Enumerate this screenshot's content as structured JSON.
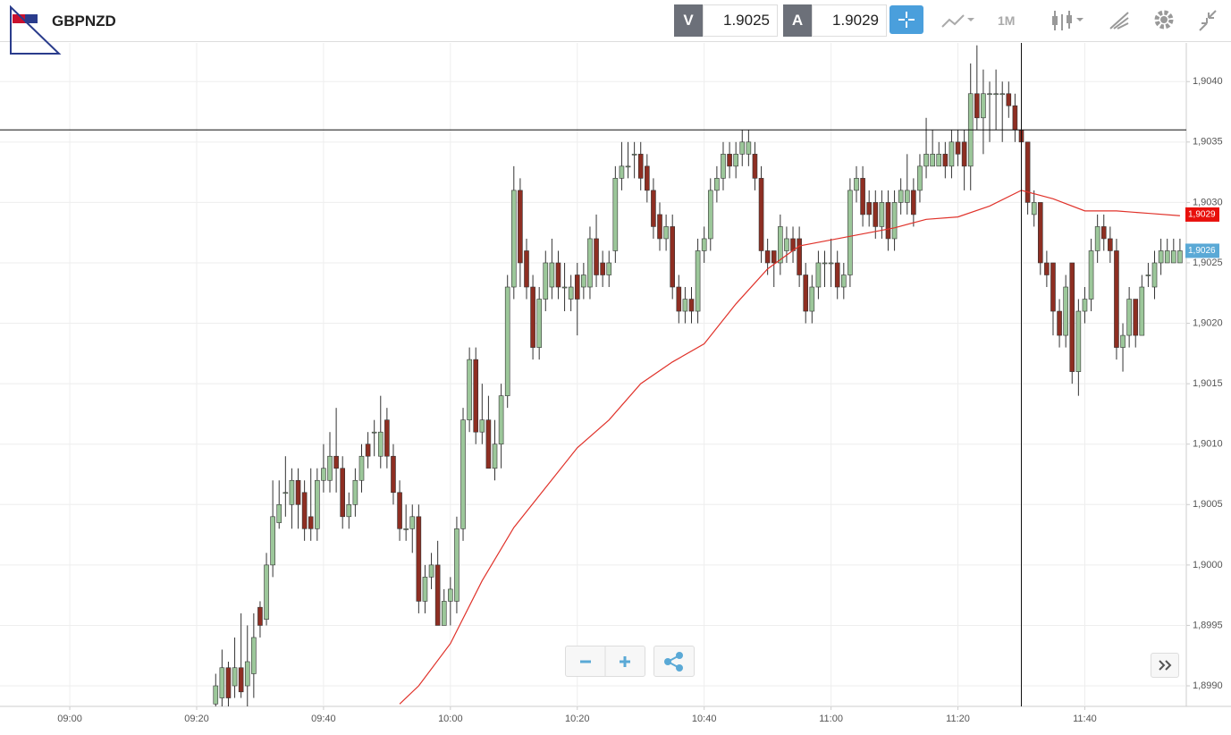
{
  "toolbar": {
    "symbol": "GBPNZD",
    "sell_label": "V",
    "sell": 1.9025,
    "buy_label": "A",
    "buy": 1.9029,
    "timeframe": "1M"
  },
  "chart_data": {
    "type": "candlestick",
    "up_color": "#9cc79a",
    "down_color": "#8e2e22",
    "grid": true,
    "xlim": [
      "08:49",
      "11:56"
    ],
    "xticks": [
      "09:00",
      "09:20",
      "09:40",
      "10:00",
      "10:20",
      "10:40",
      "11:00",
      "11:20",
      "11:40"
    ],
    "ylim": [
      1.89883,
      1.90432
    ],
    "yticks": [
      {
        "value": 1.899,
        "label": "1,8990"
      },
      {
        "value": 1.8995,
        "label": "1,8995"
      },
      {
        "value": 1.9,
        "label": "1,9000"
      },
      {
        "value": 1.9005,
        "label": "1,9005"
      },
      {
        "value": 1.901,
        "label": "1,9010"
      },
      {
        "value": 1.9015,
        "label": "1,9015"
      },
      {
        "value": 1.902,
        "label": "1,9020"
      },
      {
        "value": 1.9025,
        "label": "1,9025"
      },
      {
        "value": 1.903,
        "label": "1,9030"
      },
      {
        "value": 1.9035,
        "label": "1,9035"
      },
      {
        "value": 1.904,
        "label": "1,9040"
      }
    ],
    "x": [
      "09:23",
      "09:24",
      "09:25",
      "09:26",
      "09:27",
      "09:28",
      "09:29",
      "09:30",
      "09:31",
      "09:32",
      "09:33",
      "09:34",
      "09:35",
      "09:36",
      "09:37",
      "09:38",
      "09:39",
      "09:40",
      "09:41",
      "09:42",
      "09:43",
      "09:44",
      "09:45",
      "09:46",
      "09:47",
      "09:48",
      "09:49",
      "09:50",
      "09:51",
      "09:52",
      "09:53",
      "09:54",
      "09:55",
      "09:56",
      "09:57",
      "09:58",
      "09:59",
      "10:00",
      "10:01",
      "10:02",
      "10:03",
      "10:04",
      "10:05",
      "10:06",
      "10:07",
      "10:08",
      "10:09",
      "10:10",
      "10:11",
      "10:12",
      "10:13",
      "10:14",
      "10:15",
      "10:16",
      "10:17",
      "10:18",
      "10:19",
      "10:20",
      "10:21",
      "10:22",
      "10:23",
      "10:24",
      "10:25",
      "10:26",
      "10:27",
      "10:28",
      "10:29",
      "10:30",
      "10:31",
      "10:32",
      "10:33",
      "10:34",
      "10:35",
      "10:36",
      "10:37",
      "10:38",
      "10:39",
      "10:40",
      "10:41",
      "10:42",
      "10:43",
      "10:44",
      "10:45",
      "10:46",
      "10:47",
      "10:48",
      "10:49",
      "10:50",
      "10:51",
      "10:52",
      "10:53",
      "10:54",
      "10:55",
      "10:56",
      "10:57",
      "10:58",
      "10:59",
      "11:00",
      "11:01",
      "11:02",
      "11:03",
      "11:04",
      "11:05",
      "11:06",
      "11:07",
      "11:08",
      "11:09",
      "11:10",
      "11:11",
      "11:12",
      "11:13",
      "11:14",
      "11:15",
      "11:16",
      "11:17",
      "11:18",
      "11:19",
      "11:20",
      "11:21",
      "11:22",
      "11:23",
      "11:24",
      "11:25",
      "11:26",
      "11:27",
      "11:28",
      "11:29",
      "11:30",
      "11:31",
      "11:32",
      "11:33",
      "11:34",
      "11:35",
      "11:36",
      "11:37",
      "11:38",
      "11:39",
      "11:40",
      "11:41",
      "11:42",
      "11:43",
      "11:44",
      "11:45",
      "11:46",
      "11:47",
      "11:48",
      "11:49",
      "11:50",
      "11:51",
      "11:52",
      "11:53",
      "11:54",
      "11:55"
    ],
    "ohlc": [
      [
        1.89885,
        1.8991,
        1.8988,
        1.899
      ],
      [
        1.8989,
        1.8993,
        1.8988,
        1.89915
      ],
      [
        1.89915,
        1.8992,
        1.8988,
        1.8989
      ],
      [
        1.899,
        1.8994,
        1.8989,
        1.89915
      ],
      [
        1.89915,
        1.8996,
        1.8989,
        1.89895
      ],
      [
        1.899,
        1.8995,
        1.8988,
        1.8992
      ],
      [
        1.8991,
        1.8996,
        1.8989,
        1.8994
      ],
      [
        1.89965,
        1.8997,
        1.8994,
        1.8995
      ],
      [
        1.89955,
        1.9001,
        1.8995,
        1.9
      ],
      [
        1.9,
        1.9007,
        1.8999,
        1.9004
      ],
      [
        1.90035,
        1.9007,
        1.9003,
        1.9005
      ],
      [
        1.9006,
        1.9009,
        1.9004,
        1.9006
      ],
      [
        1.9005,
        1.9008,
        1.9003,
        1.9007
      ],
      [
        1.9007,
        1.9008,
        1.9003,
        1.9005
      ],
      [
        1.9006,
        1.9007,
        1.9002,
        1.9003
      ],
      [
        1.9004,
        1.9008,
        1.9002,
        1.9003
      ],
      [
        1.9003,
        1.9008,
        1.9002,
        1.9007
      ],
      [
        1.9007,
        1.901,
        1.9006,
        1.9008
      ],
      [
        1.9007,
        1.9011,
        1.9006,
        1.9009
      ],
      [
        1.9009,
        1.9013,
        1.9006,
        1.9008
      ],
      [
        1.9008,
        1.9009,
        1.9003,
        1.9004
      ],
      [
        1.9004,
        1.9006,
        1.9003,
        1.9005
      ],
      [
        1.9005,
        1.9008,
        1.9004,
        1.9007
      ],
      [
        1.9007,
        1.901,
        1.9006,
        1.9009
      ],
      [
        1.901,
        1.9011,
        1.9008,
        1.9009
      ],
      [
        1.9011,
        1.9012,
        1.9009,
        1.9011
      ],
      [
        1.9009,
        1.9014,
        1.9008,
        1.9011
      ],
      [
        1.9012,
        1.9013,
        1.9008,
        1.9009
      ],
      [
        1.9009,
        1.901,
        1.9005,
        1.9006
      ],
      [
        1.9006,
        1.9007,
        1.9002,
        1.9003
      ],
      [
        1.9003,
        1.9005,
        1.9002,
        1.9003
      ],
      [
        1.9003,
        1.9005,
        1.9001,
        1.9004
      ],
      [
        1.9004,
        1.9005,
        1.8996,
        1.8997
      ],
      [
        1.8997,
        1.9,
        1.8996,
        1.8999
      ],
      [
        1.8999,
        1.9001,
        1.8998,
        1.9
      ],
      [
        1.9,
        1.9002,
        1.8995,
        1.8995
      ],
      [
        1.8995,
        1.8998,
        1.8995,
        1.8997
      ],
      [
        1.8997,
        1.8999,
        1.8995,
        1.8998
      ],
      [
        1.8997,
        1.9004,
        1.8996,
        1.9003
      ],
      [
        1.9003,
        1.9013,
        1.9002,
        1.9012
      ],
      [
        1.9012,
        1.9018,
        1.9011,
        1.9017
      ],
      [
        1.9017,
        1.9018,
        1.901,
        1.9011
      ],
      [
        1.9011,
        1.9015,
        1.901,
        1.9012
      ],
      [
        1.9012,
        1.9014,
        1.9008,
        1.9008
      ],
      [
        1.9008,
        1.9012,
        1.9007,
        1.901
      ],
      [
        1.901,
        1.9015,
        1.9008,
        1.9014
      ],
      [
        1.9014,
        1.9024,
        1.9013,
        1.9023
      ],
      [
        1.9023,
        1.9033,
        1.9022,
        1.9031
      ],
      [
        1.9031,
        1.9032,
        1.9023,
        1.9025
      ],
      [
        1.9026,
        1.9027,
        1.9022,
        1.9023
      ],
      [
        1.9023,
        1.9024,
        1.9017,
        1.9018
      ],
      [
        1.9018,
        1.9023,
        1.9017,
        1.9022
      ],
      [
        1.9022,
        1.9026,
        1.9021,
        1.9025
      ],
      [
        1.9023,
        1.9027,
        1.9022,
        1.9025
      ],
      [
        1.9025,
        1.9026,
        1.9022,
        1.9023
      ],
      [
        1.9023,
        1.9025,
        1.9021,
        1.9023
      ],
      [
        1.9022,
        1.9024,
        1.9021,
        1.9023
      ],
      [
        1.9024,
        1.9025,
        1.9019,
        1.9022
      ],
      [
        1.9023,
        1.9025,
        1.9022,
        1.9024
      ],
      [
        1.9023,
        1.9028,
        1.9022,
        1.9027
      ],
      [
        1.9027,
        1.9029,
        1.9023,
        1.9024
      ],
      [
        1.9025,
        1.9026,
        1.9023,
        1.9024
      ],
      [
        1.9024,
        1.9026,
        1.9023,
        1.9025
      ],
      [
        1.9026,
        1.9033,
        1.9025,
        1.9032
      ],
      [
        1.9032,
        1.9035,
        1.9031,
        1.9033
      ],
      [
        1.9033,
        1.9035,
        1.9032,
        1.9033
      ],
      [
        1.9034,
        1.9035,
        1.9032,
        1.9034
      ],
      [
        1.9034,
        1.9035,
        1.9031,
        1.9032
      ],
      [
        1.9033,
        1.9034,
        1.903,
        1.9031
      ],
      [
        1.9031,
        1.9032,
        1.9027,
        1.9028
      ],
      [
        1.9029,
        1.903,
        1.9026,
        1.9027
      ],
      [
        1.9027,
        1.9029,
        1.9026,
        1.9028
      ],
      [
        1.9028,
        1.9029,
        1.9022,
        1.9023
      ],
      [
        1.9023,
        1.9024,
        1.902,
        1.9021
      ],
      [
        1.9021,
        1.9023,
        1.902,
        1.9022
      ],
      [
        1.9022,
        1.9023,
        1.902,
        1.9021
      ],
      [
        1.9021,
        1.9027,
        1.902,
        1.9026
      ],
      [
        1.9026,
        1.9028,
        1.9025,
        1.9027
      ],
      [
        1.9027,
        1.9032,
        1.9026,
        1.9031
      ],
      [
        1.9031,
        1.9033,
        1.903,
        1.9032
      ],
      [
        1.9032,
        1.9035,
        1.9031,
        1.9034
      ],
      [
        1.9034,
        1.9035,
        1.9032,
        1.9033
      ],
      [
        1.9033,
        1.9035,
        1.9032,
        1.9034
      ],
      [
        1.9034,
        1.9036,
        1.9033,
        1.9035
      ],
      [
        1.9034,
        1.9036,
        1.9033,
        1.9035
      ],
      [
        1.9034,
        1.9035,
        1.9031,
        1.9032
      ],
      [
        1.9032,
        1.9033,
        1.9025,
        1.9026
      ],
      [
        1.9026,
        1.9027,
        1.9024,
        1.9025
      ],
      [
        1.9026,
        1.9026,
        1.9023,
        1.9025
      ],
      [
        1.9025,
        1.9029,
        1.9024,
        1.9028
      ],
      [
        1.9026,
        1.9028,
        1.9025,
        1.9027
      ],
      [
        1.9027,
        1.9028,
        1.9025,
        1.9026
      ],
      [
        1.9027,
        1.9028,
        1.9023,
        1.9024
      ],
      [
        1.9024,
        1.9025,
        1.902,
        1.9021
      ],
      [
        1.9021,
        1.9024,
        1.902,
        1.9023
      ],
      [
        1.9023,
        1.9026,
        1.9022,
        1.9025
      ],
      [
        1.9025,
        1.9026,
        1.9023,
        1.9025
      ],
      [
        1.9025,
        1.9027,
        1.9023,
        1.9025
      ],
      [
        1.9025,
        1.9026,
        1.9022,
        1.9023
      ],
      [
        1.9023,
        1.9025,
        1.9022,
        1.9024
      ],
      [
        1.9024,
        1.9032,
        1.9023,
        1.9031
      ],
      [
        1.9031,
        1.9033,
        1.903,
        1.9032
      ],
      [
        1.9032,
        1.9033,
        1.9028,
        1.9029
      ],
      [
        1.903,
        1.9031,
        1.9028,
        1.9029
      ],
      [
        1.903,
        1.9031,
        1.9027,
        1.9028
      ],
      [
        1.9028,
        1.9031,
        1.9027,
        1.903
      ],
      [
        1.903,
        1.9031,
        1.9026,
        1.9027
      ],
      [
        1.9027,
        1.9031,
        1.9026,
        1.903
      ],
      [
        1.903,
        1.9032,
        1.9029,
        1.9031
      ],
      [
        1.903,
        1.9034,
        1.9029,
        1.9031
      ],
      [
        1.9031,
        1.9032,
        1.9028,
        1.9029
      ],
      [
        1.9031,
        1.9034,
        1.903,
        1.9033
      ],
      [
        1.9033,
        1.9037,
        1.9032,
        1.9034
      ],
      [
        1.9033,
        1.9036,
        1.9033,
        1.9034
      ],
      [
        1.9033,
        1.9035,
        1.9033,
        1.9034
      ],
      [
        1.9034,
        1.9035,
        1.9032,
        1.9033
      ],
      [
        1.9033,
        1.9036,
        1.9032,
        1.9035
      ],
      [
        1.9035,
        1.9036,
        1.9033,
        1.9034
      ],
      [
        1.9035,
        1.9036,
        1.9031,
        1.9033
      ],
      [
        1.9033,
        1.90415,
        1.9031,
        1.9039
      ],
      [
        1.9039,
        1.9043,
        1.9036,
        1.9037
      ],
      [
        1.9037,
        1.9041,
        1.9034,
        1.9039
      ],
      [
        1.9039,
        1.904,
        1.9035,
        1.9039
      ],
      [
        1.9039,
        1.9041,
        1.9036,
        1.9039
      ],
      [
        1.9039,
        1.904,
        1.9035,
        1.9039
      ],
      [
        1.9039,
        1.904,
        1.9037,
        1.9038
      ],
      [
        1.9038,
        1.9039,
        1.9035,
        1.9036
      ],
      [
        1.9036,
        1.9036,
        1.9034,
        1.9035
      ],
      [
        1.9035,
        1.9035,
        1.9029,
        1.903
      ],
      [
        1.9029,
        1.9031,
        1.9028,
        1.903
      ],
      [
        1.903,
        1.903,
        1.9024,
        1.9025
      ],
      [
        1.9025,
        1.9026,
        1.9023,
        1.9024
      ],
      [
        1.9025,
        1.9025,
        1.9019,
        1.9021
      ],
      [
        1.9021,
        1.9022,
        1.9018,
        1.9019
      ],
      [
        1.9019,
        1.9024,
        1.9018,
        1.9023
      ],
      [
        1.9025,
        1.9025,
        1.9015,
        1.9016
      ],
      [
        1.9016,
        1.9022,
        1.9014,
        1.9021
      ],
      [
        1.9021,
        1.9023,
        1.902,
        1.9022
      ],
      [
        1.9022,
        1.9027,
        1.9021,
        1.9026
      ],
      [
        1.9026,
        1.9029,
        1.9025,
        1.9028
      ],
      [
        1.9028,
        1.9029,
        1.9026,
        1.9027
      ],
      [
        1.9027,
        1.9028,
        1.9025,
        1.9026
      ],
      [
        1.9026,
        1.9027,
        1.9017,
        1.9018
      ],
      [
        1.9018,
        1.902,
        1.9016,
        1.9019
      ],
      [
        1.9019,
        1.9023,
        1.9018,
        1.9022
      ],
      [
        1.9022,
        1.9022,
        1.9018,
        1.9019
      ],
      [
        1.9019,
        1.9024,
        1.9019,
        1.9023
      ],
      [
        1.9024,
        1.9025,
        1.9023,
        1.9024
      ],
      [
        1.9023,
        1.9026,
        1.9022,
        1.9025
      ],
      [
        1.9025,
        1.9027,
        1.9024,
        1.9026
      ],
      [
        1.9025,
        1.9027,
        1.9025,
        1.9026
      ],
      [
        1.9025,
        1.9027,
        1.9025,
        1.9026
      ],
      [
        1.9025,
        1.9027,
        1.9025,
        1.9026
      ]
    ],
    "ma": {
      "color": "#e0322a",
      "x": [
        "09:52",
        "09:55",
        "10:00",
        "10:05",
        "10:10",
        "10:15",
        "10:20",
        "10:25",
        "10:30",
        "10:35",
        "10:40",
        "10:45",
        "10:50",
        "10:55",
        "11:00",
        "11:05",
        "11:10",
        "11:15",
        "11:20",
        "11:25",
        "11:30",
        "11:35",
        "11:40",
        "11:45",
        "11:50",
        "11:55"
      ],
      "values": [
        1.89885,
        1.899,
        1.89935,
        1.89987,
        1.90031,
        1.90064,
        1.90097,
        1.9012,
        1.9015,
        1.90168,
        1.90183,
        1.90216,
        1.90245,
        1.90264,
        1.90269,
        1.90274,
        1.90279,
        1.90286,
        1.90288,
        1.90297,
        1.9031,
        1.90303,
        1.90293,
        1.90293,
        1.90291,
        1.90289
      ]
    },
    "crosshair": {
      "x": "11:30",
      "y": 1.9036
    },
    "price_labels": [
      {
        "value": 1.9029,
        "label": "1,9029",
        "color": "#e8100c"
      },
      {
        "value": 1.9026,
        "label": "1,9026",
        "color": "#5aa9d6"
      }
    ]
  }
}
